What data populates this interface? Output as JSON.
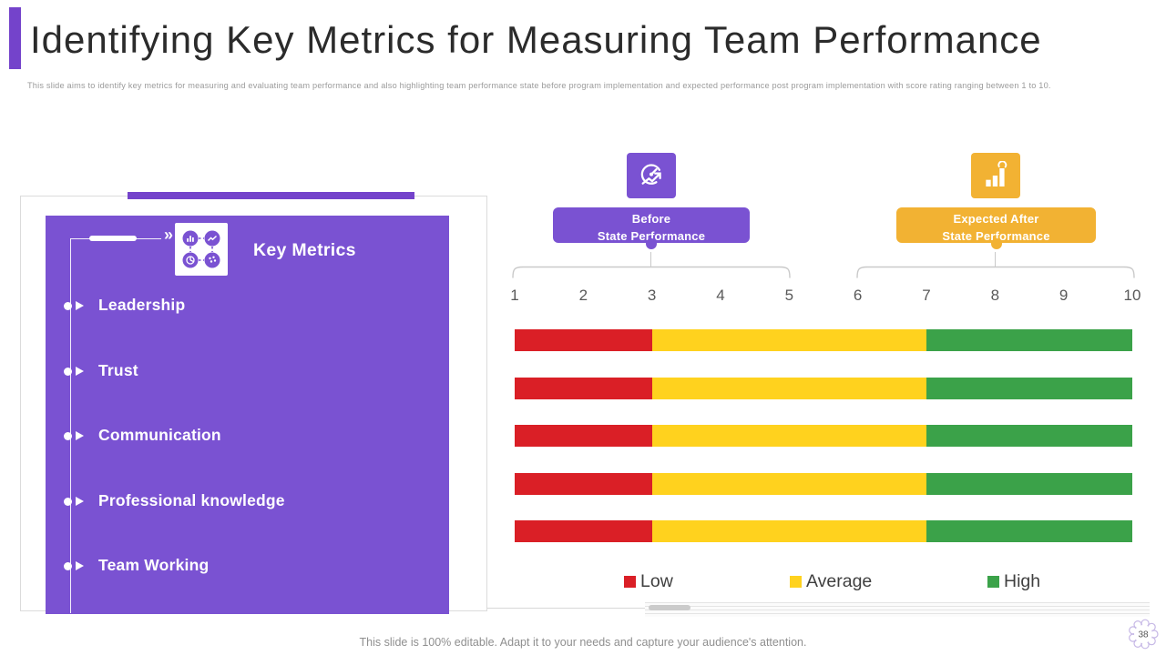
{
  "slide": {
    "title": "Identifying Key Metrics for Measuring Team Performance",
    "subtitle": "This slide aims to identify key metrics for measuring and evaluating team performance and  also highlighting  team performance state before program implementation and expected performance post program  implementation with  score rating ranging  between  1 to 10.",
    "footer": "This slide is 100% editable. Adapt it to your needs and capture your audience's attention.",
    "page_number": "38"
  },
  "key_metrics_panel": {
    "heading": "Key Metrics",
    "items": [
      "Leadership",
      "Trust",
      "Communication",
      "Professional knowledge",
      "Team Working"
    ]
  },
  "performance": {
    "before_label_line1": "Before",
    "before_label_line2": "State Performance",
    "after_label_line1": "Expected After",
    "after_label_line2": "State Performance",
    "scale": [
      "1",
      "2",
      "3",
      "4",
      "5",
      "6",
      "7",
      "8",
      "9",
      "10"
    ]
  },
  "legend": [
    {
      "label": "Low",
      "color": "#DA1F26"
    },
    {
      "label": "Average",
      "color": "#FFD21E"
    },
    {
      "label": "High",
      "color": "#3BA249"
    }
  ],
  "icons": {
    "panel_icon": "metrics-network-icon",
    "before_icon": "speedometer-gauge-icon",
    "after_icon": "growth-bar-chart-icon",
    "page_badge_icon": "gear-icon",
    "connector_arrow": "»"
  },
  "colors": {
    "purple": "#7A52D2",
    "purple_dark": "#7443CB",
    "yellow": "#F2B233",
    "bar_red": "#DA1F26",
    "bar_yellow": "#FFD21E",
    "bar_green": "#3BA249"
  },
  "chart_data": {
    "type": "bar",
    "orientation": "horizontal-stacked",
    "title": "Team performance score rating before vs expected after program implementation",
    "categories": [
      "Leadership",
      "Trust",
      "Communication",
      "Professional knowledge",
      "Team Working"
    ],
    "series": [
      {
        "name": "Low",
        "range": [
          1,
          3
        ],
        "value": 2,
        "color": "#DA1F26"
      },
      {
        "name": "Average",
        "range": [
          3,
          7
        ],
        "value": 4,
        "color": "#FFD21E"
      },
      {
        "name": "High",
        "range": [
          7,
          10
        ],
        "value": 3,
        "color": "#3BA249"
      }
    ],
    "x_axis": {
      "min": 1,
      "max": 10,
      "ticks": [
        1,
        2,
        3,
        4,
        5,
        6,
        7,
        8,
        9,
        10
      ]
    },
    "before_state_span": [
      1,
      5
    ],
    "expected_after_span": [
      6,
      10
    ],
    "legend_position": "bottom",
    "grid": false,
    "note": "All five category rows are identical stacked bars spanning 1-10: Low 1-3, Average 3-7, High 7-10"
  }
}
